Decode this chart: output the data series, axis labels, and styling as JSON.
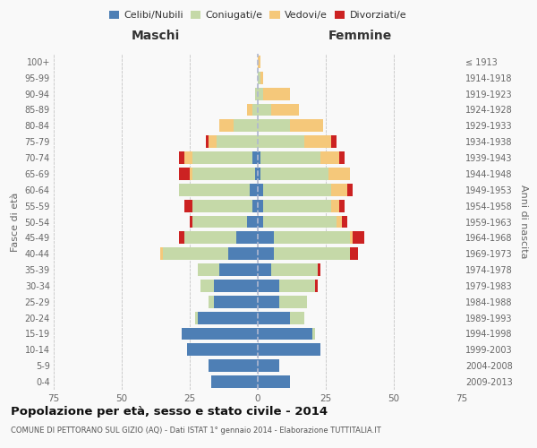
{
  "age_groups": [
    "0-4",
    "5-9",
    "10-14",
    "15-19",
    "20-24",
    "25-29",
    "30-34",
    "35-39",
    "40-44",
    "45-49",
    "50-54",
    "55-59",
    "60-64",
    "65-69",
    "70-74",
    "75-79",
    "80-84",
    "85-89",
    "90-94",
    "95-99",
    "100+"
  ],
  "birth_years": [
    "2009-2013",
    "2004-2008",
    "1999-2003",
    "1994-1998",
    "1989-1993",
    "1984-1988",
    "1979-1983",
    "1974-1978",
    "1969-1973",
    "1964-1968",
    "1959-1963",
    "1954-1958",
    "1949-1953",
    "1944-1948",
    "1939-1943",
    "1934-1938",
    "1929-1933",
    "1924-1928",
    "1919-1923",
    "1914-1918",
    "≤ 1913"
  ],
  "males": {
    "celibe": [
      17,
      18,
      26,
      28,
      22,
      16,
      16,
      14,
      11,
      8,
      4,
      2,
      3,
      1,
      2,
      0,
      0,
      0,
      0,
      0,
      0
    ],
    "coniugato": [
      0,
      0,
      0,
      0,
      1,
      2,
      5,
      8,
      24,
      19,
      20,
      22,
      26,
      23,
      22,
      15,
      9,
      2,
      1,
      0,
      0
    ],
    "vedovo": [
      0,
      0,
      0,
      0,
      0,
      0,
      0,
      0,
      1,
      0,
      0,
      0,
      0,
      1,
      3,
      3,
      5,
      2,
      0,
      0,
      0
    ],
    "divorziato": [
      0,
      0,
      0,
      0,
      0,
      0,
      0,
      0,
      0,
      2,
      1,
      3,
      0,
      4,
      2,
      1,
      0,
      0,
      0,
      0,
      0
    ]
  },
  "females": {
    "nubile": [
      12,
      8,
      23,
      20,
      12,
      8,
      8,
      5,
      6,
      6,
      2,
      2,
      2,
      1,
      1,
      0,
      0,
      0,
      0,
      0,
      0
    ],
    "coniugata": [
      0,
      0,
      0,
      1,
      5,
      10,
      13,
      17,
      28,
      28,
      27,
      25,
      25,
      25,
      22,
      17,
      12,
      5,
      2,
      1,
      0
    ],
    "vedova": [
      0,
      0,
      0,
      0,
      0,
      0,
      0,
      0,
      0,
      1,
      2,
      3,
      6,
      8,
      7,
      10,
      12,
      10,
      10,
      1,
      1
    ],
    "divorziata": [
      0,
      0,
      0,
      0,
      0,
      0,
      1,
      1,
      3,
      4,
      2,
      2,
      2,
      0,
      2,
      2,
      0,
      0,
      0,
      0,
      0
    ]
  },
  "color_celibe": "#4e7fb5",
  "color_coniugato": "#c5d9a8",
  "color_vedovo": "#f5c87a",
  "color_divorziato": "#cc2222",
  "title": "Popolazione per età, sesso e stato civile - 2014",
  "subtitle": "COMUNE DI PETTORANO SUL GIZIO (AQ) - Dati ISTAT 1° gennaio 2014 - Elaborazione TUTTITALIA.IT",
  "xlabel_left": "Maschi",
  "xlabel_right": "Femmine",
  "ylabel_left": "Fasce di età",
  "ylabel_right": "Anni di nascita",
  "xlim": 75,
  "background_color": "#f9f9f9",
  "grid_color": "#cccccc"
}
